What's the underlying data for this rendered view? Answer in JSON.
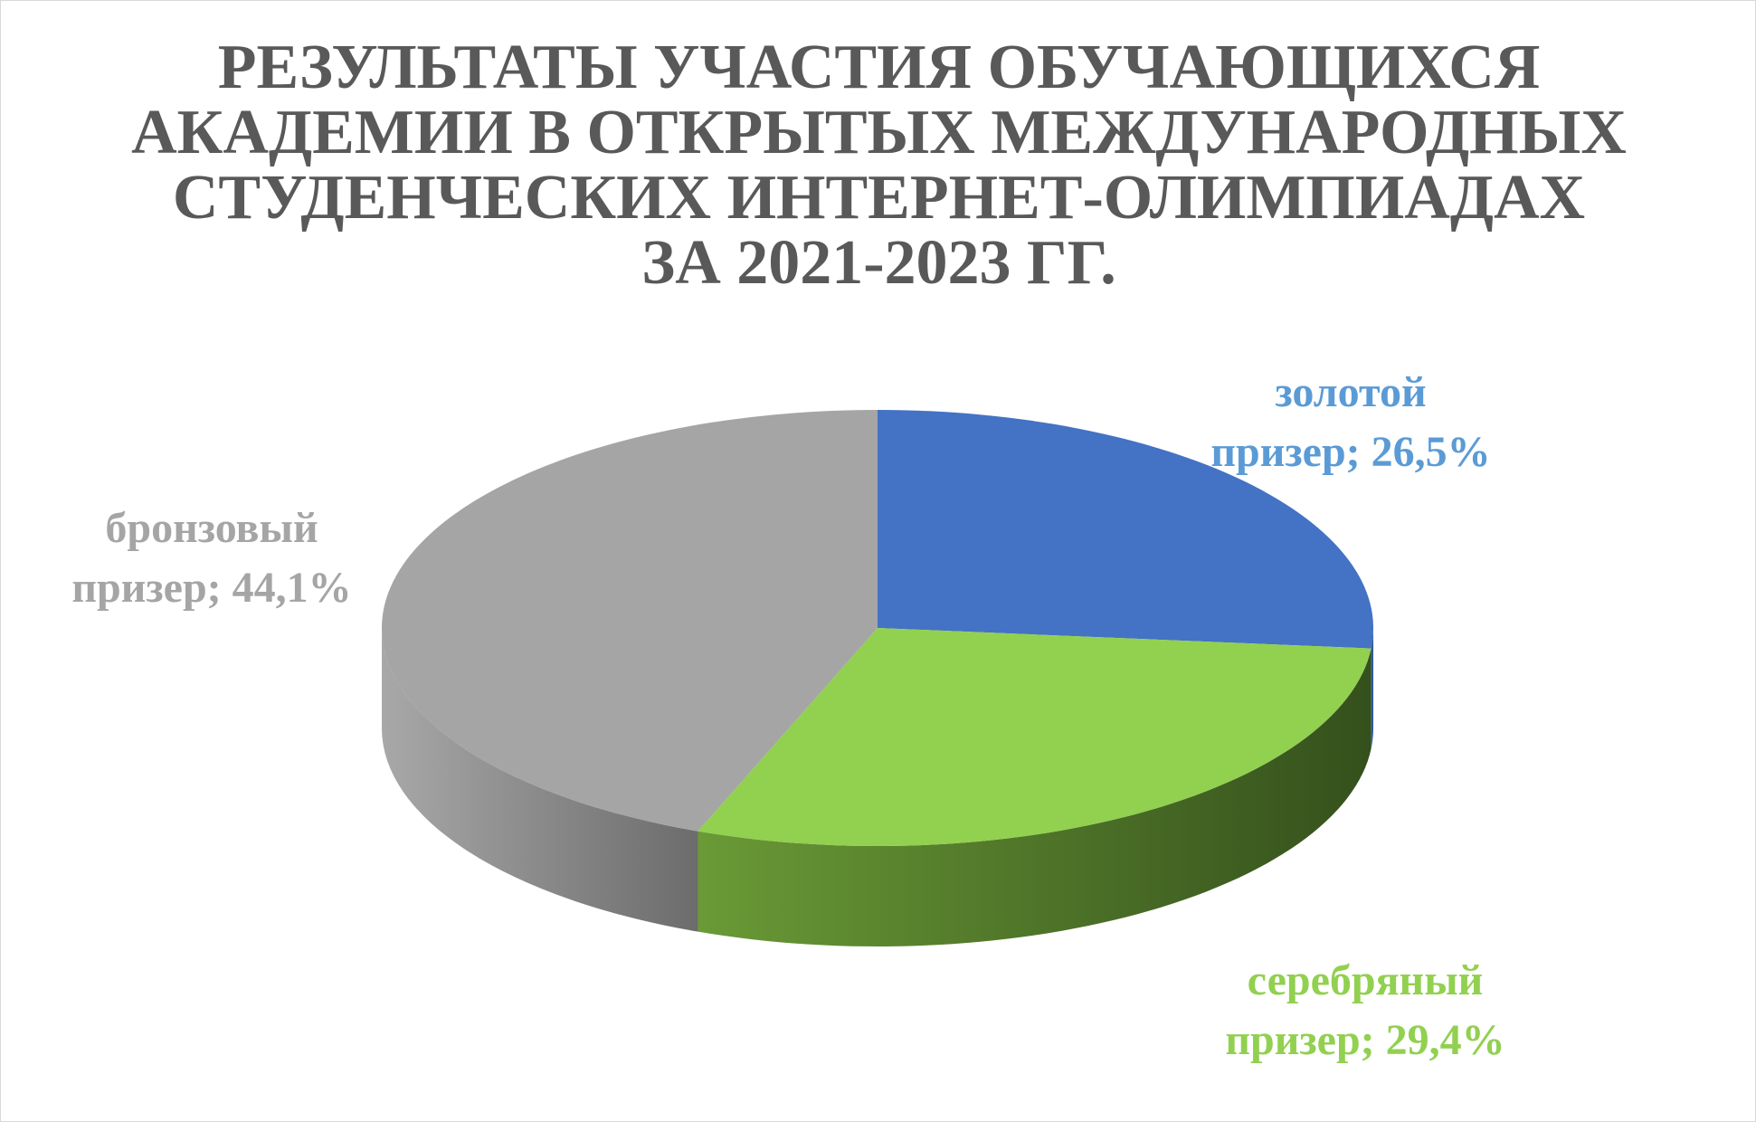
{
  "chart_data": {
    "type": "pie3d",
    "title": "РЕЗУЛЬТАТЫ УЧАСТИЯ ОБУЧАЮЩИХСЯ\nАКАДЕМИИ В ОТКРЫТЫХ МЕЖДУНАРОДНЫХ\nСТУДЕНЧЕСКИХ ИНТЕРНЕТ-ОЛИМПИАДАХ\nЗА 2021-2023 ГГ.",
    "values": [
      26.5,
      29.4,
      44.1
    ],
    "value_labels": [
      "золотой\nпризер; 26,5%",
      "серебряный\nпризер; 29,4%",
      "бронзовый\nпризер; 44,1%"
    ],
    "colors": [
      "#4472c4",
      "#92d050",
      "#a5a5a5"
    ],
    "label_colors": [
      "#5b9bd5",
      "#92d050",
      "#a5a5a5"
    ]
  }
}
